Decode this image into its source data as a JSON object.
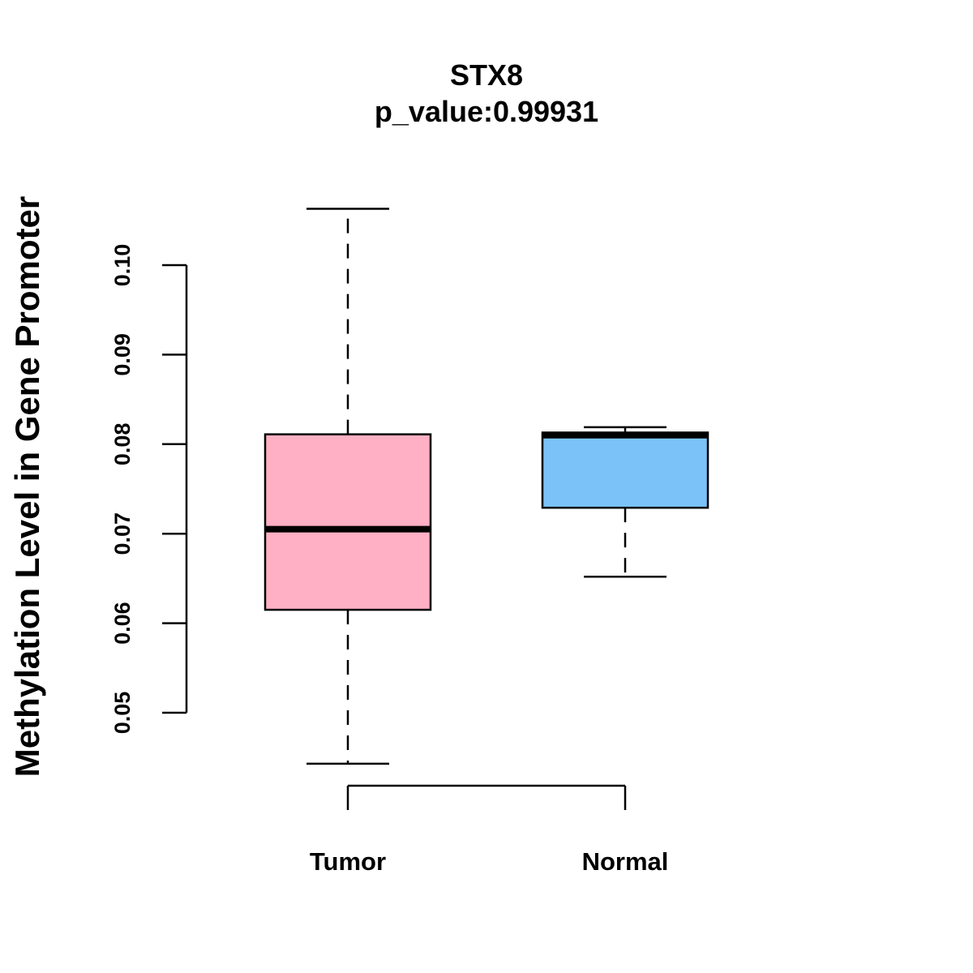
{
  "chart_data": {
    "type": "boxplot",
    "title": "STX8",
    "subtitle": "p_value:0.99931",
    "xlabel": "",
    "ylabel": "Methylation Level in Gene Promoter",
    "ylim": [
      0.05,
      0.1
    ],
    "yticks": [
      0.05,
      0.06,
      0.07,
      0.08,
      0.09,
      0.1
    ],
    "ytick_labels": [
      "0.05",
      "0.06",
      "0.07",
      "0.08",
      "0.09",
      "0.10"
    ],
    "categories": [
      "Tumor",
      "Normal"
    ],
    "grid": false,
    "series": [
      {
        "name": "Tumor",
        "color": "#FFB0C4",
        "whisker_low": 0.0443,
        "q1": 0.0615,
        "median": 0.0705,
        "q3": 0.0811,
        "whisker_high": 0.1063
      },
      {
        "name": "Normal",
        "color": "#7AC2F7",
        "whisker_low": 0.0652,
        "q1": 0.0729,
        "median": 0.081,
        "q3": 0.0813,
        "whisker_high": 0.0819
      }
    ]
  }
}
